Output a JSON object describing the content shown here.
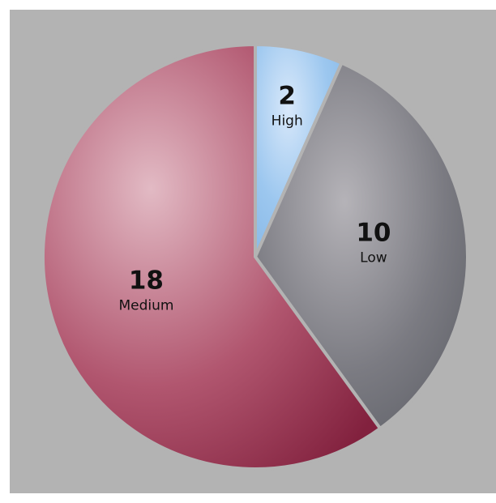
{
  "chart_data": {
    "type": "pie",
    "background": "#b3b3b3",
    "slices": [
      {
        "label": "High",
        "value": 2,
        "color_light": "#d8e8fa",
        "color": "#9cc7ef",
        "color_dark": "#86b7e6"
      },
      {
        "label": "Low",
        "value": 10,
        "color_light": "#b5b3b8",
        "color": "#7b7b82",
        "color_dark": "#595b62"
      },
      {
        "label": "Medium",
        "value": 18,
        "color_light": "#e2bac4",
        "color": "#b1566f",
        "color_dark": "#82213e"
      }
    ]
  }
}
